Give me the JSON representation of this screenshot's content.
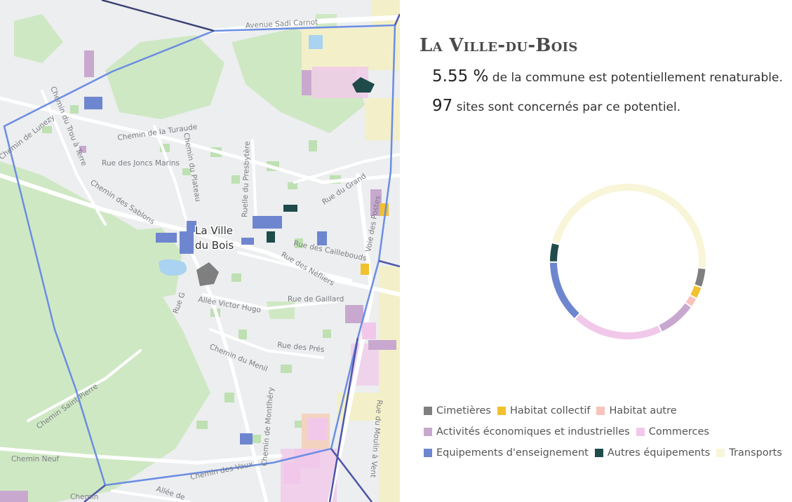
{
  "map": {
    "streets": {
      "sadi_carnot": "Avenue Sadi Carnot",
      "turaude": "Chemin de la Turaude",
      "joncs_marins": "Rue des Joncs Marins",
      "plateau": "Chemin du Plateau",
      "presbytere": "Ruelle du Presbytère",
      "sablons": "Chemin des Sablons",
      "lunezy": "Chemin de Lunezy",
      "trou_a_terre": "Chemin du Trou à Terre",
      "grand": "Rue du Grand",
      "caillebouds": "Rue des Caillebouds",
      "nefliers": "Rue des Néfliers",
      "voie_des_postes": "Voie des Postes",
      "gaillard": "Rue de Gaillard",
      "victor_hugo": "Allée Victor Hugo",
      "rue_g": "Rue G",
      "pres": "Rue des Prés",
      "menil": "Chemin du Menil",
      "montlhery": "Chemin de Montlhéry",
      "saint_pierre": "Chemin Saint Pierre",
      "neuf": "Chemin Neuf",
      "vaux": "Chemin des Vaux",
      "moulin_a_vent": "Rue du Moulin à Vent",
      "allee": "Allée de",
      "chemin_bottom": "Chemin"
    },
    "town_label_line1": "La Ville",
    "town_label_line2": "du Bois",
    "boundary_color": "#6b8de3"
  },
  "panel": {
    "title": "La Ville-du-Bois",
    "stat_percent": "5.55 %",
    "stat_percent_text": " de la commune est potentiellement renaturable.",
    "stat_sites": "97",
    "stat_sites_text": " sites sont concernés par ce potentiel."
  },
  "chart_data": {
    "type": "pie",
    "style": "donut",
    "title": "",
    "categories": [
      "Cimetières",
      "Habitat collectif",
      "Habitat autre",
      "Activités économiques et industrielles",
      "Commerces",
      "Equipements d'enseignement",
      "Autres équipements",
      "Transports"
    ],
    "colors": [
      "#7f7f7f",
      "#f2c12e",
      "#f7c3bc",
      "#c9a8d0",
      "#f1c8ea",
      "#6e86cf",
      "#1f4b4b",
      "#f8f5d8"
    ],
    "values": [
      4.0,
      2.5,
      2.0,
      8.0,
      19.0,
      13.0,
      4.0,
      47.5
    ],
    "start_angle_deg": 95,
    "legend_position": "bottom"
  }
}
